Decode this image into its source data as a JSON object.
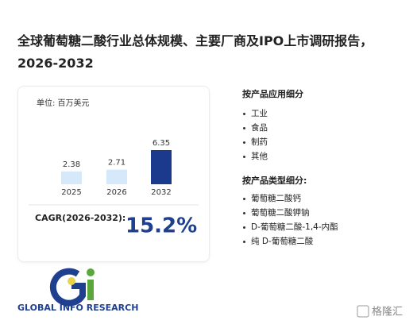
{
  "header": {
    "title": "全球葡萄糖二酸行业总体规模、主要厂商及IPO上市调研报告，2026-2032"
  },
  "chart_data": {
    "type": "bar",
    "unit": "单位: 百万美元",
    "categories": [
      "2025",
      "2026",
      "2032"
    ],
    "values": [
      2.38,
      2.71,
      6.35
    ],
    "colors": [
      "#d6e9fb",
      "#d6e9fb",
      "#1b3a8e"
    ]
  },
  "cagr": {
    "label": "CAGR(2026-2032):",
    "value": "15.2%"
  },
  "application": {
    "heading": "按产品应用细分",
    "items": [
      "工业",
      "食品",
      "制药",
      "其他"
    ]
  },
  "product_type": {
    "heading": "按产品类型细分:",
    "items": [
      "葡萄糖二酸钙",
      "葡萄糖二酸钾钠",
      "D-葡萄糖二酸-1,4-内酯",
      "纯 D-葡萄糖二酸"
    ]
  },
  "logo": {
    "text": "GLOBAL INFO RESEARCH"
  },
  "brand": {
    "text": "格隆汇"
  }
}
